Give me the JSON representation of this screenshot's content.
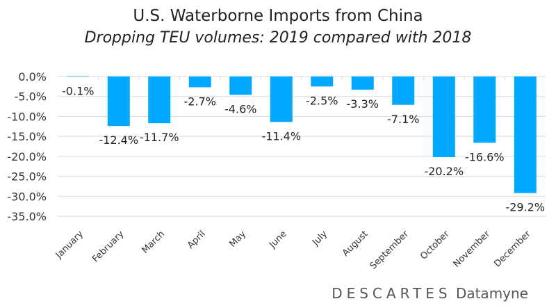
{
  "chart_data": {
    "type": "bar",
    "title": "U.S. Waterborne Imports from China",
    "subtitle": "Dropping TEU volumes: 2019 compared with 2018",
    "xlabel": "",
    "ylabel": "",
    "categories": [
      "January",
      "February",
      "March",
      "April",
      "May",
      "June",
      "July",
      "August",
      "September",
      "October",
      "November",
      "December"
    ],
    "values": [
      -0.1,
      -12.4,
      -11.7,
      -2.7,
      -4.6,
      -11.4,
      -2.5,
      -3.3,
      -7.1,
      -20.2,
      -16.6,
      -29.2
    ],
    "data_labels": [
      "-0.1%",
      "-12.4%",
      "-11.7%",
      "-2.7%",
      "-4.6%",
      "-11.4%",
      "-2.5%",
      "-3.3%",
      "-7.1%",
      "-20.2%",
      "-16.6%",
      "-29.2%"
    ],
    "ylim": [
      -35,
      0
    ],
    "yticks": [
      "0.0%",
      "-5.0%",
      "-10.0%",
      "-15.0%",
      "-20.0%",
      "-25.0%",
      "-30.0%",
      "-35.0%"
    ],
    "grid": true,
    "bar_color": "#00A8FF",
    "grid_color": "#d9d9d9"
  },
  "logo": {
    "brand": "DESCARTES",
    "product": "Datamyne"
  }
}
